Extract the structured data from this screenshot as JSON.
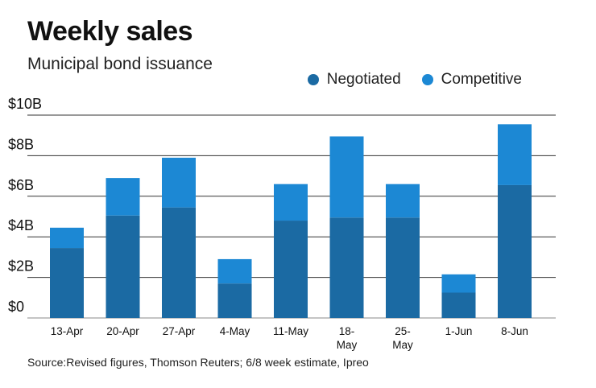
{
  "chart_data": {
    "type": "bar",
    "stacked": true,
    "title": "Weekly sales",
    "subtitle": "Municipal bond issuance",
    "categories": [
      [
        "13-Apr"
      ],
      [
        "20-Apr"
      ],
      [
        "27-Apr"
      ],
      [
        "4-May"
      ],
      [
        "11-May"
      ],
      [
        "18-",
        "May"
      ],
      [
        "25-",
        "May"
      ],
      [
        "1-Jun"
      ],
      [
        "8-Jun"
      ]
    ],
    "series": [
      {
        "name": "Negotiated",
        "color": "#1b6aa3",
        "values": [
          3.45,
          5.05,
          5.45,
          1.7,
          4.8,
          4.95,
          4.95,
          1.25,
          6.55
        ]
      },
      {
        "name": "Competitive",
        "color": "#1c88d4",
        "values": [
          1.0,
          1.85,
          2.45,
          1.2,
          1.8,
          4.0,
          1.65,
          0.9,
          3.0
        ]
      }
    ],
    "ylim": [
      0,
      10
    ],
    "yticks": [
      {
        "value": 0,
        "label": "$0"
      },
      {
        "value": 2,
        "label": "$2B"
      },
      {
        "value": 4,
        "label": "$4B"
      },
      {
        "value": 6,
        "label": "$6B"
      },
      {
        "value": 8,
        "label": "$8B"
      },
      {
        "value": 10,
        "label": "$10B"
      }
    ],
    "grid": true,
    "legend_position": "top-right",
    "source": "Source:Revised figures, Thomson Reuters; 6/8 week estimate, Ipreo"
  }
}
